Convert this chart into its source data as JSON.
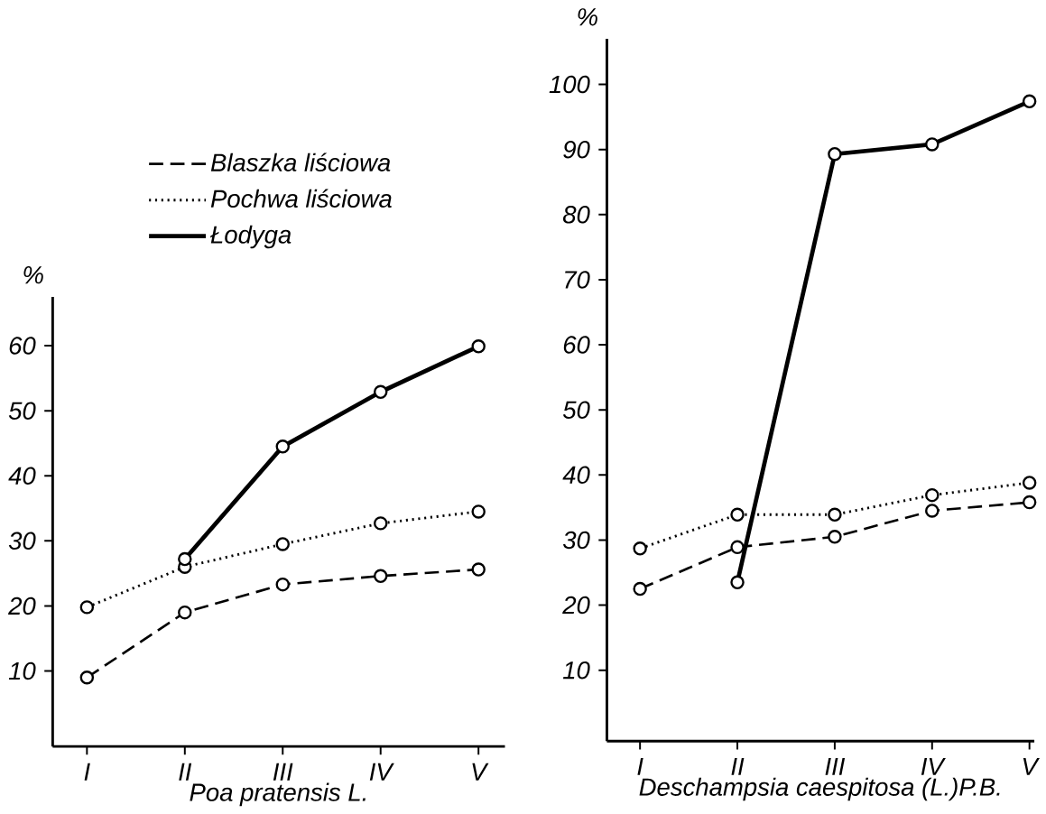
{
  "chart_data": [
    {
      "type": "line",
      "categories": [
        "I",
        "II",
        "III",
        "IV",
        "V"
      ],
      "xlabel": "Poa pratensis L.",
      "ylabel": "%",
      "ylim": [
        -1.6,
        67.5
      ],
      "yticks": [
        10,
        20,
        30,
        40,
        50,
        60
      ],
      "marker": "circle",
      "legend": "top left",
      "grid": false,
      "series": [
        {
          "name": "Blaszka liściowa",
          "color": "#000000",
          "line_style": "dashed",
          "values": [
            9.0,
            19.0,
            23.3,
            24.6,
            25.6
          ]
        },
        {
          "name": "Pochwa liściowa",
          "color": "#000000",
          "line_style": "dotted",
          "values": [
            19.8,
            26.0,
            29.5,
            32.7,
            34.5
          ]
        },
        {
          "name": "Łodyga",
          "color": "#000000",
          "line_style": "solid",
          "values": [
            null,
            27.2,
            44.5,
            52.9,
            59.9
          ]
        }
      ]
    },
    {
      "type": "line",
      "categories": [
        "I",
        "II",
        "III",
        "IV",
        "V"
      ],
      "xlabel": "Deschampsia caespitosa (L.)P.B.",
      "ylabel": "%",
      "ylim": [
        -0.9,
        107
      ],
      "yticks": [
        10,
        20,
        30,
        40,
        50,
        60,
        70,
        80,
        90,
        100
      ],
      "marker": "circle",
      "grid": false,
      "series": [
        {
          "color": "#000000",
          "line_style": "dashed",
          "values": [
            22.5,
            28.9,
            30.5,
            34.5,
            35.8
          ]
        },
        {
          "color": "#000000",
          "line_style": "dotted",
          "values": [
            28.7,
            33.9,
            33.9,
            36.9,
            38.8
          ]
        },
        {
          "color": "#000000",
          "line_style": "solid",
          "values": [
            null,
            23.5,
            89.3,
            90.8,
            97.4
          ]
        }
      ]
    }
  ]
}
